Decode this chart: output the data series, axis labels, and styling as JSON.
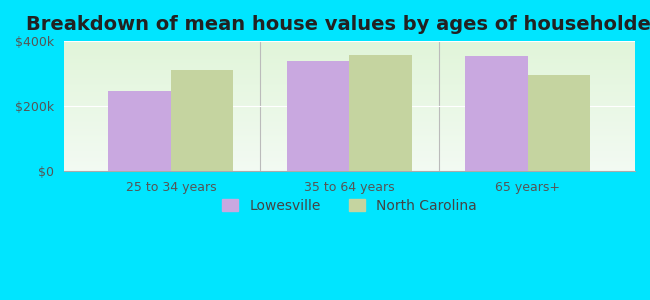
{
  "title": "Breakdown of mean house values by ages of householders",
  "categories": [
    "25 to 34 years",
    "35 to 64 years",
    "65 years+"
  ],
  "lowesville": [
    245000,
    340000,
    355000
  ],
  "north_carolina": [
    310000,
    358000,
    295000
  ],
  "lowesville_color": "#c9a8e0",
  "nc_color": "#c5d4a0",
  "background_color": "#00e5ff",
  "ylim": [
    0,
    400000
  ],
  "yticks": [
    0,
    200000,
    400000
  ],
  "ytick_labels": [
    "$0",
    "$200k",
    "$400k"
  ],
  "legend_labels": [
    "Lowesville",
    "North Carolina"
  ],
  "bar_width": 0.35,
  "title_fontsize": 14,
  "tick_fontsize": 9,
  "legend_fontsize": 10
}
